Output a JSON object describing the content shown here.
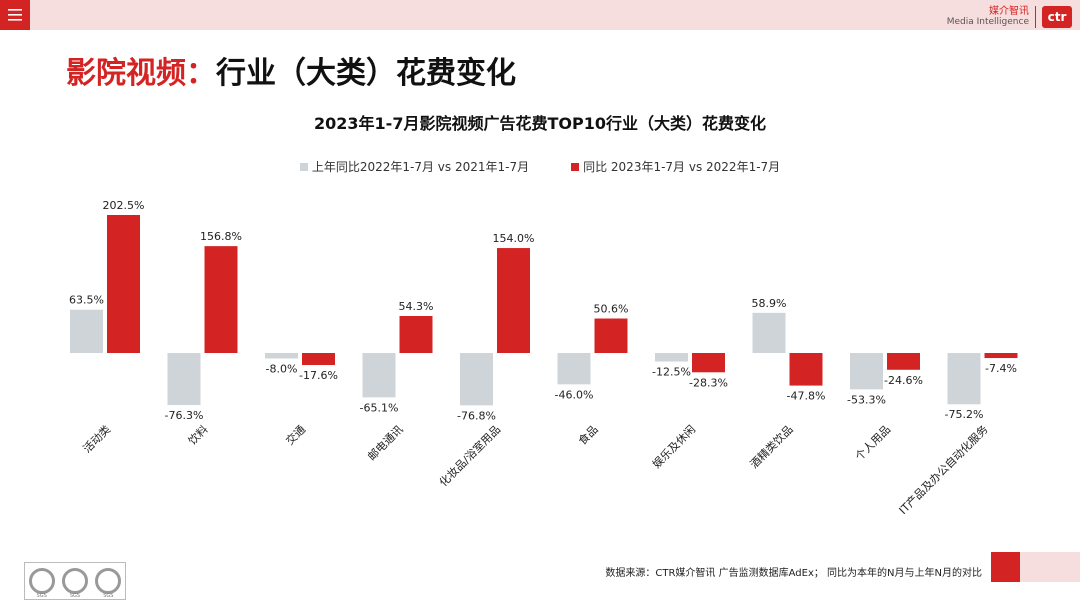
{
  "header": {
    "brand_cn": "媒介智讯",
    "brand_en": "Media Intelligence",
    "brand_logo": "ctr"
  },
  "page_title": {
    "red_part": "影院视频：",
    "black_part": "行业（大类）花费变化"
  },
  "footer": {
    "source": "数据来源：CTR媒介智讯 广告监测数据库AdEx；  同比为本年的N月与上年N月的对比",
    "cert_label": "SGS"
  },
  "colors": {
    "accent": "#d42323",
    "prev_series": "#cfd4d8",
    "curr_series": "#d42323",
    "topbar": "#f7dede"
  },
  "chart_data": {
    "type": "bar",
    "title": "2023年1-7月影院视频广告花费TOP10行业（大类）花费变化",
    "categories": [
      "活动类",
      "饮料",
      "交通",
      "邮电通讯",
      "化妆品/浴室用品",
      "食品",
      "娱乐及休闲",
      "酒精类饮品",
      "个人用品",
      "IT产品及办公自动化服务"
    ],
    "series": [
      {
        "name": "上年同比2022年1-7月 vs 2021年1-7月",
        "color": "#cfd4d8",
        "values": [
          63.5,
          -76.3,
          -8.0,
          -65.1,
          -76.8,
          -46.0,
          -12.5,
          58.9,
          -53.3,
          -75.2
        ],
        "labels": [
          "63.5%",
          "-76.3%",
          "-8.0%",
          "-65.1%",
          "-76.8%",
          "-46.0%",
          "-12.5%",
          "58.9%",
          "-53.3%",
          "-75.2%"
        ]
      },
      {
        "name": "同比 2023年1-7月 vs 2022年1-7月",
        "color": "#d42323",
        "values": [
          202.5,
          156.8,
          -17.6,
          54.3,
          154.0,
          50.6,
          -28.3,
          -47.8,
          -24.6,
          -7.4
        ],
        "labels": [
          "202.5%",
          "156.8%",
          "-17.6%",
          "54.3%",
          "154.0%",
          "50.6%",
          "-28.3%",
          "-47.8%",
          "-24.6%",
          "-7.4%"
        ]
      }
    ],
    "legend_position": "top",
    "grid": false
  }
}
